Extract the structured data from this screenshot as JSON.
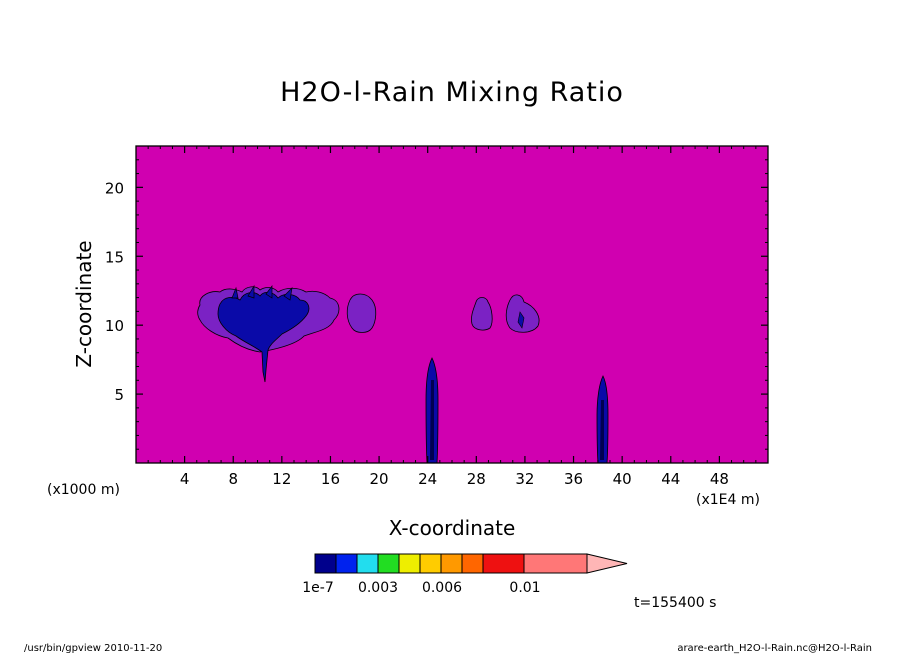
{
  "chart_data": {
    "type": "heatmap",
    "title": "H2O-l-Rain Mixing Ratio",
    "xlabel": "X-coordinate",
    "ylabel": "Z-coordinate",
    "x_unit": "(x1E4 m)",
    "y_unit": "(x1000 m)",
    "xlim": [
      0,
      52
    ],
    "ylim": [
      0,
      23
    ],
    "x_ticks": [
      4,
      8,
      12,
      16,
      20,
      24,
      28,
      32,
      36,
      40,
      44,
      48
    ],
    "y_ticks": [
      5,
      10,
      15,
      20
    ],
    "time_label": "t=155400 s",
    "background": {
      "level": "< 1e-7",
      "color": "#d000b0"
    },
    "colorbar": {
      "colors": [
        "#00008c",
        "#0022ee",
        "#22ddee",
        "#22dd22",
        "#eeee00",
        "#ffcc00",
        "#ff9900",
        "#ff6600",
        "#ee1111",
        "#ff7777",
        "#ffb6b6"
      ],
      "labels": [
        "1e-7",
        "0.003",
        "0.006",
        "0.01"
      ]
    },
    "regions": [
      {
        "name": "upper cloud cluster",
        "level": "< 0.003",
        "x_range": [
          5,
          18
        ],
        "z_range": [
          6,
          12.7
        ]
      },
      {
        "name": "isolated cell",
        "level": "< 0.003",
        "x_range": [
          17.3,
          19.6
        ],
        "z_range": [
          9.2,
          12.4
        ]
      },
      {
        "name": "rain column",
        "level": "< 0.003",
        "x_range": [
          23.6,
          24.4
        ],
        "z_range": [
          0,
          7.7
        ]
      },
      {
        "name": "small cell",
        "level": "< 0.003",
        "x_range": [
          27.4,
          28.8
        ],
        "z_range": [
          9.5,
          11.8
        ]
      },
      {
        "name": "small cell",
        "level": "< 0.003",
        "x_range": [
          30,
          32.4
        ],
        "z_range": [
          9.2,
          12
        ]
      },
      {
        "name": "rain column",
        "level": "< 0.003",
        "x_range": [
          37.5,
          38.4
        ],
        "z_range": [
          0,
          6.3
        ]
      }
    ]
  },
  "footer": {
    "left": "/usr/bin/gpview  2010-11-20",
    "right": "arare-earth_H2O-l-Rain.nc@H2O-l-Rain"
  }
}
